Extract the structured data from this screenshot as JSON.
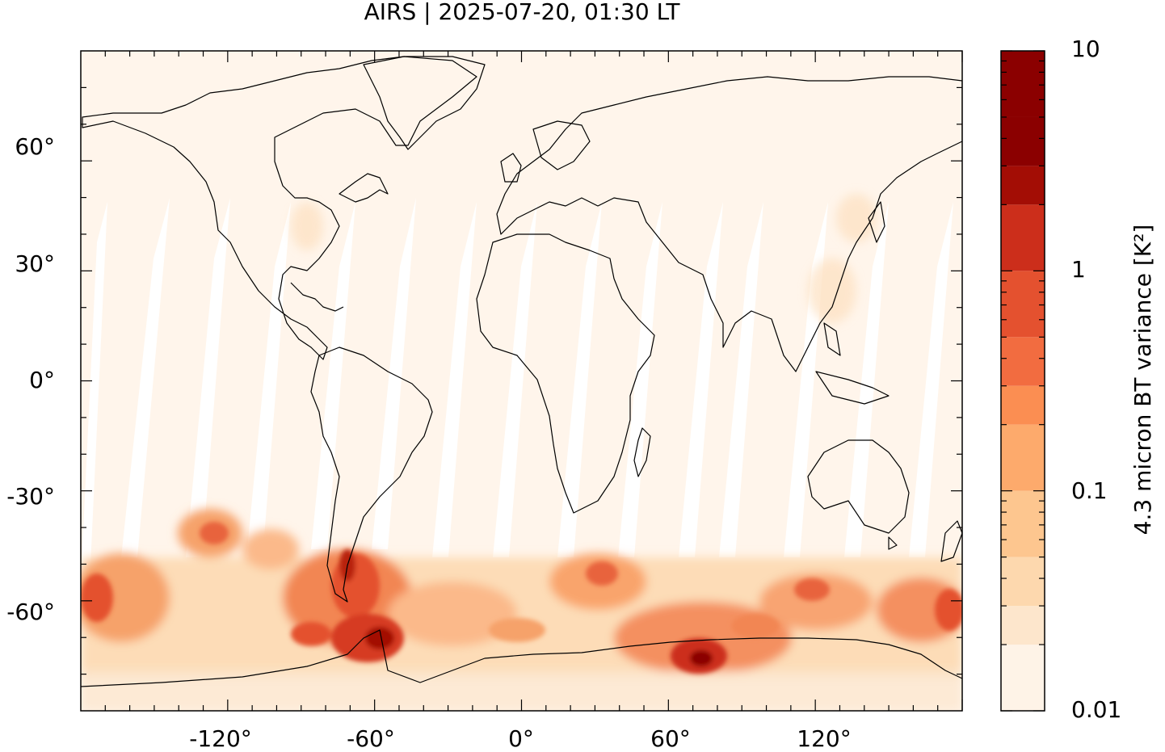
{
  "title": "AIRS | 2025-07-20, 01:30 LT",
  "map": {
    "projection": "equirectangular",
    "lon_range": [
      -180,
      180
    ],
    "lat_range": [
      -90,
      90
    ],
    "x_ticks": [
      -120,
      -60,
      0,
      60,
      120
    ],
    "x_tick_labels": [
      "-120°",
      "-60°",
      "0°",
      "60°",
      "120°"
    ],
    "y_ticks": [
      60,
      30,
      0,
      -30,
      -60
    ],
    "y_tick_labels": [
      "60°",
      "30°",
      "0°",
      "-30°",
      "-60°"
    ],
    "background_color": "#fff5eb",
    "coastlines": "black outline of continents",
    "swath_gaps": "white diagonal gaps between satellite swaths in tropics/subtropics"
  },
  "colorbar": {
    "label": "4.3 micron BT variance [K²]",
    "scale": "log",
    "range": [
      0.01,
      10
    ],
    "tick_labels": [
      "10",
      "1",
      "0.1",
      "0.01"
    ],
    "tick_values": [
      10,
      1,
      0.1,
      0.01
    ],
    "levels": [
      0.01,
      0.02,
      0.03,
      0.05,
      0.1,
      0.2,
      0.3,
      0.5,
      1,
      2,
      3,
      5,
      10
    ],
    "colors": [
      "#fef3e7",
      "#fde6cc",
      "#fdd8ae",
      "#fdc68f",
      "#fdaa6c",
      "#fb8e52",
      "#f26c40",
      "#e4512f",
      "#cc2e1b",
      "#a30d05",
      "#8b0000",
      "#8b0000"
    ]
  },
  "features": [
    {
      "name": "Southern Ocean high variance band",
      "lat_range": [
        -75,
        -45
      ],
      "max_value": 5
    },
    {
      "name": "Southern Andes / Drake Passage hotspot",
      "lon": -65,
      "lat": -58
    },
    {
      "name": "Antarctic coast near 70E hotspot",
      "lon": 72,
      "lat": -68
    }
  ]
}
